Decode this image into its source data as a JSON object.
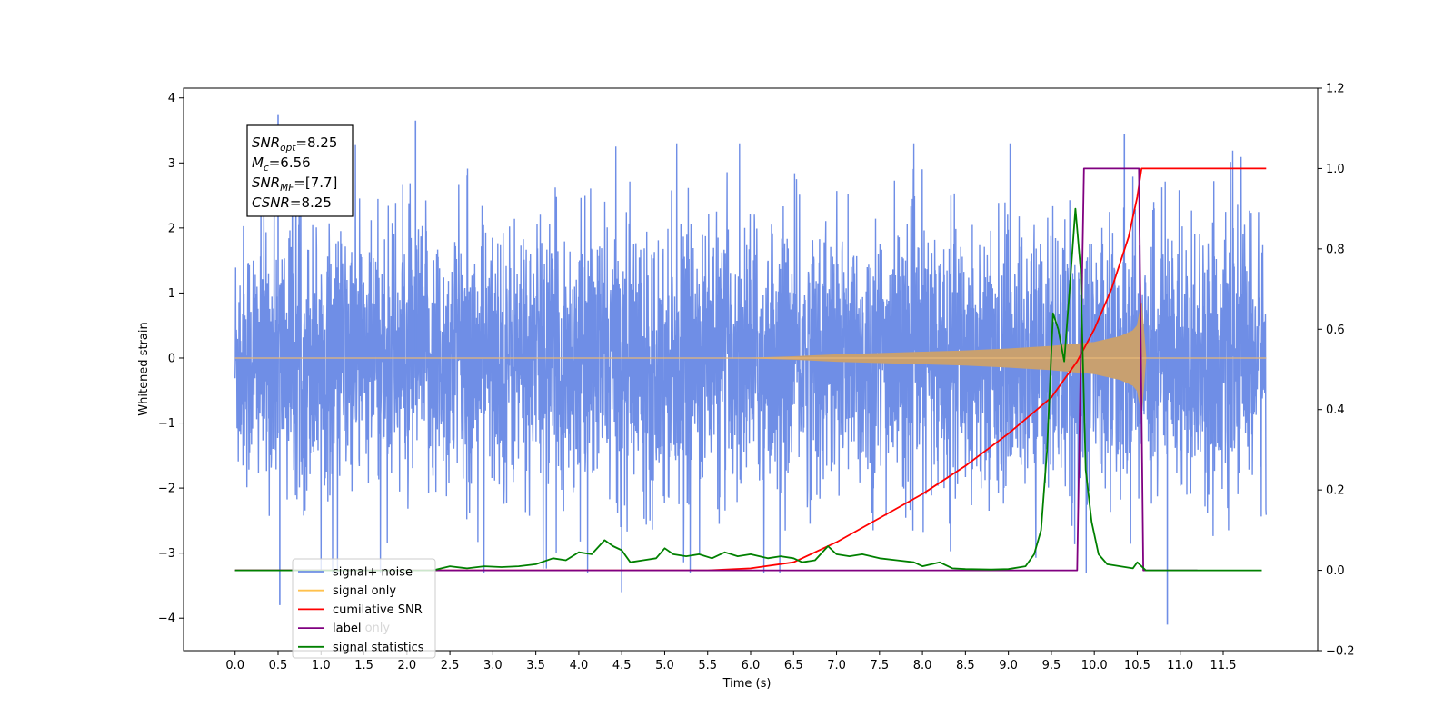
{
  "chart_data": {
    "type": "line",
    "xlabel": "Time (s)",
    "ylabel_left": "Whitened strain",
    "xlim": [
      -0.6,
      12.6
    ],
    "ylim_left": [
      -4.5,
      4.15
    ],
    "ylim_right": [
      -0.2,
      1.2
    ],
    "x_ticks": [
      "0.0",
      "0.5",
      "1.0",
      "1.5",
      "2.0",
      "2.5",
      "3.0",
      "3.5",
      "4.0",
      "4.5",
      "5.0",
      "5.5",
      "6.0",
      "6.5",
      "7.0",
      "7.5",
      "8.0",
      "8.5",
      "9.0",
      "9.5",
      "10.0",
      "10.5",
      "11.0",
      "11.5"
    ],
    "y_left_ticks": [
      "4",
      "3",
      "2",
      "1",
      "0",
      "−1",
      "−2",
      "−3",
      "−4"
    ],
    "y_right_ticks": [
      "1.2",
      "1.0",
      "0.8",
      "0.6",
      "0.4",
      "0.2",
      "0.0",
      "−0.2"
    ],
    "grid": false,
    "legend_position": "lower-left",
    "annotation": {
      "lines": [
        {
          "base": "SNR",
          "sub": "opt",
          "rest": "=8.25"
        },
        {
          "base": "M",
          "sub": "c",
          "rest": "=6.56"
        },
        {
          "base": "SNR",
          "sub": "MF",
          "rest": "=[7.7]"
        },
        {
          "base": "CSNR",
          "sub": "",
          "rest": "=8.25"
        }
      ]
    },
    "legend": [
      {
        "label": "signal+ noise",
        "color": "#6f8ee6"
      },
      {
        "label": "signal only",
        "color": "#ffc14d"
      },
      {
        "label": "cumilative SNR",
        "color": "#ff0000"
      },
      {
        "label": "label",
        "color": "#800080"
      },
      {
        "label": "signal statistics",
        "color": "#008000"
      }
    ],
    "hidden_legend_text": "label only",
    "series": [
      {
        "name": "signal+ noise",
        "axis": "left",
        "color": "#6f8ee6",
        "x_range": [
          0.0,
          12.0
        ],
        "y_range": [
          -4.1,
          3.75
        ],
        "note_points": [
          [
            0.5,
            3.75
          ],
          [
            0.52,
            -3.8
          ],
          [
            2.1,
            3.65
          ],
          [
            4.5,
            -3.6
          ],
          [
            10.85,
            -4.1
          ],
          [
            10.35,
            3.45
          ]
        ]
      },
      {
        "name": "signal only",
        "axis": "left",
        "color": "#c8a070",
        "envelope": [
          [
            0.0,
            0.0
          ],
          [
            6.0,
            0.0
          ],
          [
            6.5,
            0.02
          ],
          [
            7.0,
            0.05
          ],
          [
            7.5,
            0.07
          ],
          [
            8.0,
            0.09
          ],
          [
            8.5,
            0.11
          ],
          [
            9.0,
            0.14
          ],
          [
            9.5,
            0.18
          ],
          [
            10.0,
            0.24
          ],
          [
            10.3,
            0.33
          ],
          [
            10.45,
            0.42
          ],
          [
            10.5,
            0.5
          ],
          [
            10.55,
            0.85
          ],
          [
            10.6,
            0.0
          ],
          [
            12.0,
            0.0
          ]
        ]
      },
      {
        "name": "cumilative SNR",
        "axis": "right",
        "color": "#ff0000",
        "points": [
          [
            0.0,
            0.0
          ],
          [
            2.0,
            0.0
          ],
          [
            4.0,
            0.0
          ],
          [
            5.0,
            0.0
          ],
          [
            5.5,
            0.0
          ],
          [
            6.0,
            0.005
          ],
          [
            6.5,
            0.02
          ],
          [
            7.0,
            0.07
          ],
          [
            7.5,
            0.13
          ],
          [
            8.0,
            0.19
          ],
          [
            8.5,
            0.26
          ],
          [
            9.0,
            0.34
          ],
          [
            9.5,
            0.43
          ],
          [
            9.8,
            0.52
          ],
          [
            10.0,
            0.6
          ],
          [
            10.2,
            0.7
          ],
          [
            10.4,
            0.83
          ],
          [
            10.5,
            0.93
          ],
          [
            10.55,
            1.0
          ],
          [
            11.5,
            1.0
          ],
          [
            12.0,
            1.0
          ]
        ]
      },
      {
        "name": "label",
        "axis": "right",
        "color": "#800080",
        "points": [
          [
            0.0,
            0.0
          ],
          [
            9.8,
            0.0
          ],
          [
            9.88,
            1.0
          ],
          [
            10.52,
            1.0
          ],
          [
            10.57,
            0.0
          ],
          [
            11.2,
            0.0
          ]
        ]
      },
      {
        "name": "signal statistics",
        "axis": "right",
        "color": "#008000",
        "points": [
          [
            0.0,
            0.0
          ],
          [
            2.1,
            0.0
          ],
          [
            2.3,
            0.0
          ],
          [
            2.5,
            0.01
          ],
          [
            2.7,
            0.005
          ],
          [
            2.9,
            0.01
          ],
          [
            3.1,
            0.008
          ],
          [
            3.3,
            0.01
          ],
          [
            3.5,
            0.015
          ],
          [
            3.7,
            0.03
          ],
          [
            3.85,
            0.025
          ],
          [
            4.0,
            0.045
          ],
          [
            4.15,
            0.04
          ],
          [
            4.3,
            0.075
          ],
          [
            4.4,
            0.06
          ],
          [
            4.5,
            0.05
          ],
          [
            4.6,
            0.02
          ],
          [
            4.75,
            0.025
          ],
          [
            4.9,
            0.03
          ],
          [
            5.0,
            0.055
          ],
          [
            5.1,
            0.04
          ],
          [
            5.25,
            0.035
          ],
          [
            5.4,
            0.04
          ],
          [
            5.55,
            0.03
          ],
          [
            5.7,
            0.045
          ],
          [
            5.85,
            0.035
          ],
          [
            6.0,
            0.04
          ],
          [
            6.2,
            0.03
          ],
          [
            6.35,
            0.035
          ],
          [
            6.5,
            0.03
          ],
          [
            6.6,
            0.02
          ],
          [
            6.75,
            0.025
          ],
          [
            6.9,
            0.06
          ],
          [
            7.0,
            0.04
          ],
          [
            7.15,
            0.035
          ],
          [
            7.3,
            0.04
          ],
          [
            7.5,
            0.03
          ],
          [
            7.7,
            0.025
          ],
          [
            7.9,
            0.02
          ],
          [
            8.0,
            0.01
          ],
          [
            8.2,
            0.02
          ],
          [
            8.35,
            0.005
          ],
          [
            8.5,
            0.003
          ],
          [
            8.8,
            0.002
          ],
          [
            9.0,
            0.003
          ],
          [
            9.2,
            0.01
          ],
          [
            9.3,
            0.04
          ],
          [
            9.38,
            0.1
          ],
          [
            9.45,
            0.3
          ],
          [
            9.52,
            0.64
          ],
          [
            9.58,
            0.6
          ],
          [
            9.65,
            0.52
          ],
          [
            9.72,
            0.72
          ],
          [
            9.78,
            0.9
          ],
          [
            9.84,
            0.75
          ],
          [
            9.9,
            0.25
          ],
          [
            9.97,
            0.12
          ],
          [
            10.05,
            0.04
          ],
          [
            10.15,
            0.015
          ],
          [
            10.3,
            0.01
          ],
          [
            10.45,
            0.005
          ],
          [
            10.5,
            0.02
          ],
          [
            10.6,
            0.0
          ],
          [
            11.5,
            0.0
          ],
          [
            11.95,
            0.0
          ]
        ]
      }
    ]
  }
}
